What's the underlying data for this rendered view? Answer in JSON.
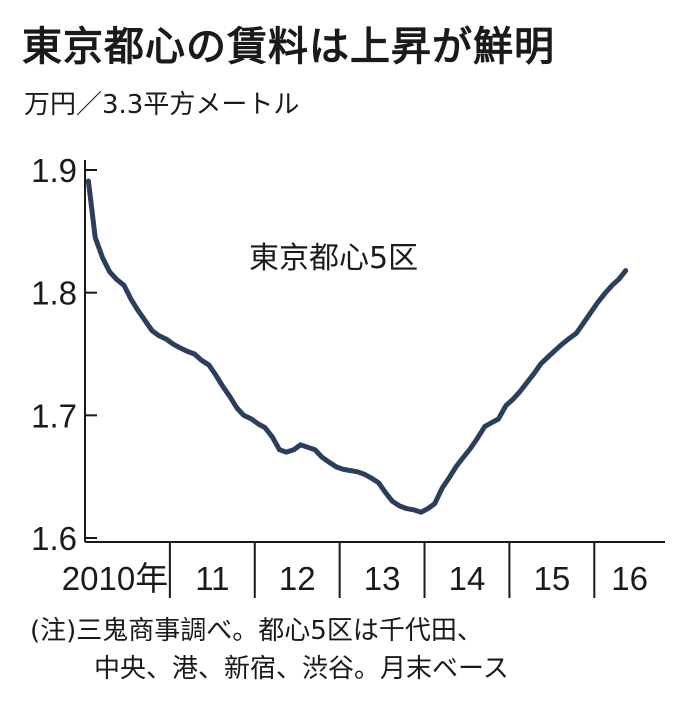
{
  "title": "東京都心の賃料は上昇が鮮明",
  "unit_label": "万円／3.3平方メートル",
  "notes": [
    "(注)三鬼商事調べ。都心5区は千代田、",
    "中央、港、新宿、渋谷。月末ベース"
  ],
  "colors": {
    "line": "#2b3f5c",
    "axis": "#1a1a1a"
  },
  "chart_data": {
    "type": "line",
    "title": "東京都心の賃料は上昇が鮮明",
    "ylabel": "万円／3.3平方メートル",
    "xlabel": "",
    "ylim": [
      1.6,
      1.9
    ],
    "yticks": [
      "1.6",
      "1.7",
      "1.8",
      "1.9"
    ],
    "xlim": [
      2010.0,
      2016.833
    ],
    "xticks": [
      {
        "label": "2010年",
        "year": 2010
      },
      {
        "label": "11",
        "year": 2011
      },
      {
        "label": "12",
        "year": 2012
      },
      {
        "label": "13",
        "year": 2013
      },
      {
        "label": "14",
        "year": 2014
      },
      {
        "label": "15",
        "year": 2015
      },
      {
        "label": "16",
        "year": 2016
      }
    ],
    "series": [
      {
        "name": "東京都心5区",
        "points": [
          [
            2010.04,
            1.891
          ],
          [
            2010.12,
            1.845
          ],
          [
            2010.21,
            1.828
          ],
          [
            2010.29,
            1.817
          ],
          [
            2010.37,
            1.811
          ],
          [
            2010.46,
            1.806
          ],
          [
            2010.54,
            1.795
          ],
          [
            2010.62,
            1.786
          ],
          [
            2010.71,
            1.777
          ],
          [
            2010.79,
            1.769
          ],
          [
            2010.87,
            1.765
          ],
          [
            2010.96,
            1.762
          ],
          [
            2011.04,
            1.758
          ],
          [
            2011.12,
            1.755
          ],
          [
            2011.21,
            1.752
          ],
          [
            2011.29,
            1.75
          ],
          [
            2011.37,
            1.745
          ],
          [
            2011.46,
            1.741
          ],
          [
            2011.54,
            1.733
          ],
          [
            2011.62,
            1.724
          ],
          [
            2011.71,
            1.715
          ],
          [
            2011.79,
            1.706
          ],
          [
            2011.87,
            1.7
          ],
          [
            2011.96,
            1.697
          ],
          [
            2012.04,
            1.693
          ],
          [
            2012.12,
            1.69
          ],
          [
            2012.21,
            1.682
          ],
          [
            2012.29,
            1.672
          ],
          [
            2012.37,
            1.67
          ],
          [
            2012.46,
            1.672
          ],
          [
            2012.54,
            1.676
          ],
          [
            2012.62,
            1.674
          ],
          [
            2012.71,
            1.672
          ],
          [
            2012.79,
            1.666
          ],
          [
            2012.87,
            1.662
          ],
          [
            2012.96,
            1.658
          ],
          [
            2013.04,
            1.656
          ],
          [
            2013.12,
            1.655
          ],
          [
            2013.21,
            1.654
          ],
          [
            2013.29,
            1.652
          ],
          [
            2013.37,
            1.649
          ],
          [
            2013.46,
            1.645
          ],
          [
            2013.54,
            1.637
          ],
          [
            2013.62,
            1.63
          ],
          [
            2013.71,
            1.626
          ],
          [
            2013.79,
            1.624
          ],
          [
            2013.87,
            1.623
          ],
          [
            2013.96,
            1.621
          ],
          [
            2014.04,
            1.624
          ],
          [
            2014.12,
            1.628
          ],
          [
            2014.21,
            1.641
          ],
          [
            2014.29,
            1.649
          ],
          [
            2014.37,
            1.658
          ],
          [
            2014.46,
            1.666
          ],
          [
            2014.54,
            1.673
          ],
          [
            2014.62,
            1.681
          ],
          [
            2014.71,
            1.691
          ],
          [
            2014.79,
            1.694
          ],
          [
            2014.87,
            1.697
          ],
          [
            2014.96,
            1.708
          ],
          [
            2015.04,
            1.713
          ],
          [
            2015.12,
            1.719
          ],
          [
            2015.21,
            1.727
          ],
          [
            2015.29,
            1.734
          ],
          [
            2015.37,
            1.742
          ],
          [
            2015.46,
            1.748
          ],
          [
            2015.54,
            1.753
          ],
          [
            2015.62,
            1.758
          ],
          [
            2015.71,
            1.763
          ],
          [
            2015.79,
            1.767
          ],
          [
            2015.87,
            1.775
          ],
          [
            2015.96,
            1.784
          ],
          [
            2016.04,
            1.792
          ],
          [
            2016.12,
            1.799
          ],
          [
            2016.21,
            1.806
          ],
          [
            2016.29,
            1.811
          ],
          [
            2016.37,
            1.818
          ]
        ]
      }
    ],
    "grid": false
  }
}
